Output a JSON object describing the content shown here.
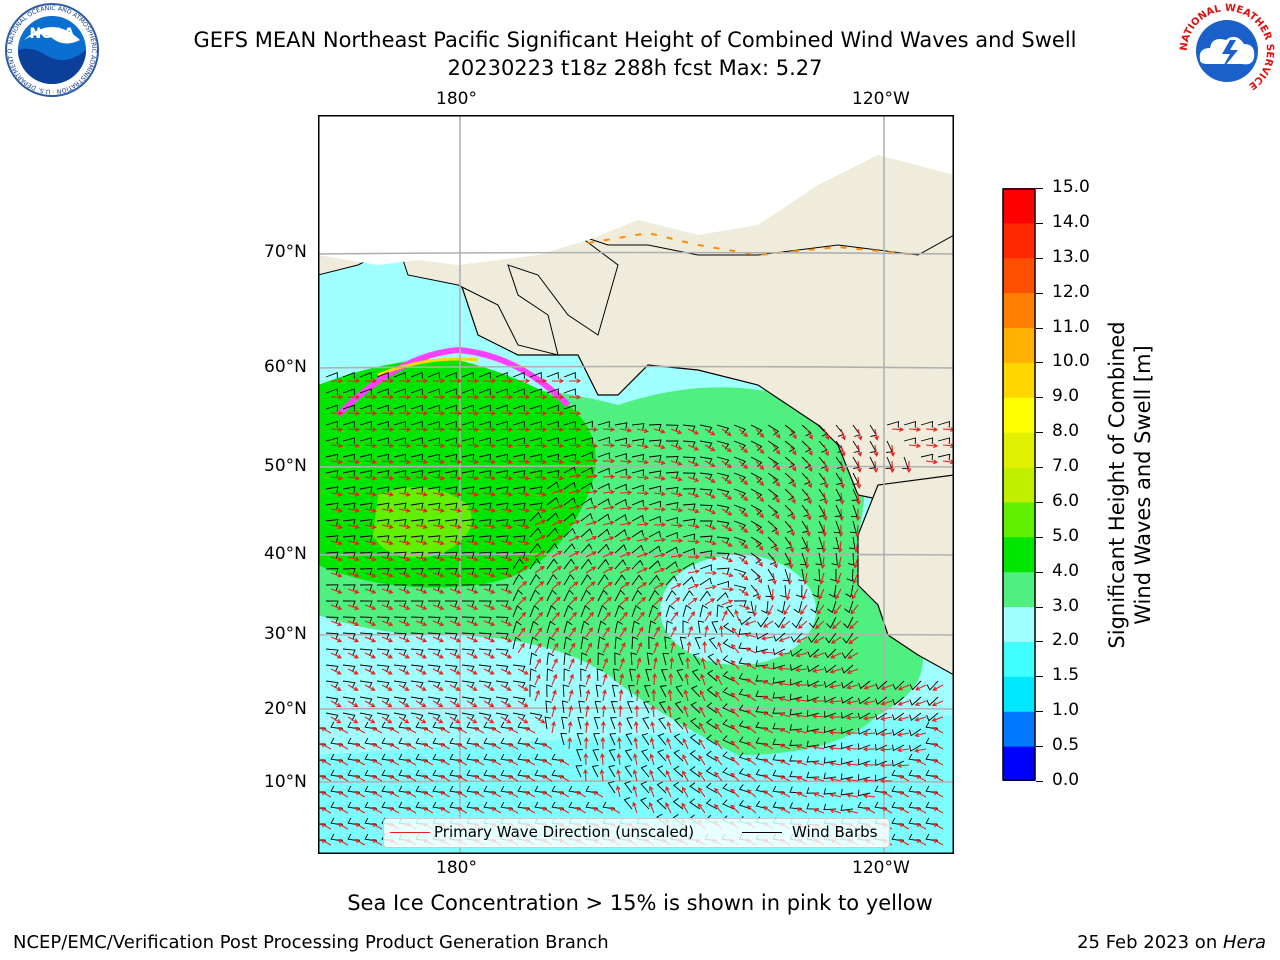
{
  "header": {
    "title_line1": "GEFS MEAN Northeast Pacific Significant Height of Combined Wind Waves and Swell",
    "title_line2": "20230223 t18z 288h fcst   Max: 5.27"
  },
  "logos": {
    "noaa_text": "NOAA",
    "noaa_ring": "NATIONAL OCEANIC AND ATMOSPHERIC ADMINISTRATION · U.S. DEPARTMENT OF COMMERCE",
    "nws_ring": "NATIONAL WEATHER SERVICE"
  },
  "map": {
    "lon_top": [
      "180°",
      "120°W"
    ],
    "lon_bottom": [
      "180°",
      "120°W"
    ],
    "lat_labels": [
      "70°N",
      "60°N",
      "50°N",
      "40°N",
      "30°N",
      "20°N",
      "10°N"
    ],
    "legend": {
      "wave_label": "Primary Wave Direction (unscaled)",
      "barb_label": "Wind Barbs",
      "wave_color": "#e8201c",
      "barb_color": "#000000"
    },
    "land_color": "#efecdc",
    "ice_colors": [
      "#ff40ff",
      "#ff8c00",
      "#ffd700"
    ]
  },
  "colorbar": {
    "label_line1": "Significant Height of Combined",
    "label_line2": "Wind Waves and Swell [m]",
    "ticks": [
      "0.0",
      "0.5",
      "1.0",
      "1.5",
      "2.0",
      "3.0",
      "4.0",
      "5.0",
      "6.0",
      "7.0",
      "8.0",
      "9.0",
      "10.0",
      "11.0",
      "12.0",
      "13.0",
      "14.0",
      "15.0"
    ],
    "colors": [
      "#0000ff",
      "#0078ff",
      "#00e8ff",
      "#40ffff",
      "#a0ffff",
      "#50f080",
      "#00e600",
      "#60f000",
      "#c0f000",
      "#e0f000",
      "#ffff00",
      "#ffd700",
      "#ffb000",
      "#ff8000",
      "#ff5000",
      "#ff2800",
      "#ff0000"
    ]
  },
  "footer": {
    "ice_note": "Sea Ice Concentration > 15% is shown in pink to yellow",
    "producer": "NCEP/EMC/Verification Post Processing Product Generation Branch",
    "date": "25 Feb 2023 on ",
    "machine": "Hera"
  }
}
